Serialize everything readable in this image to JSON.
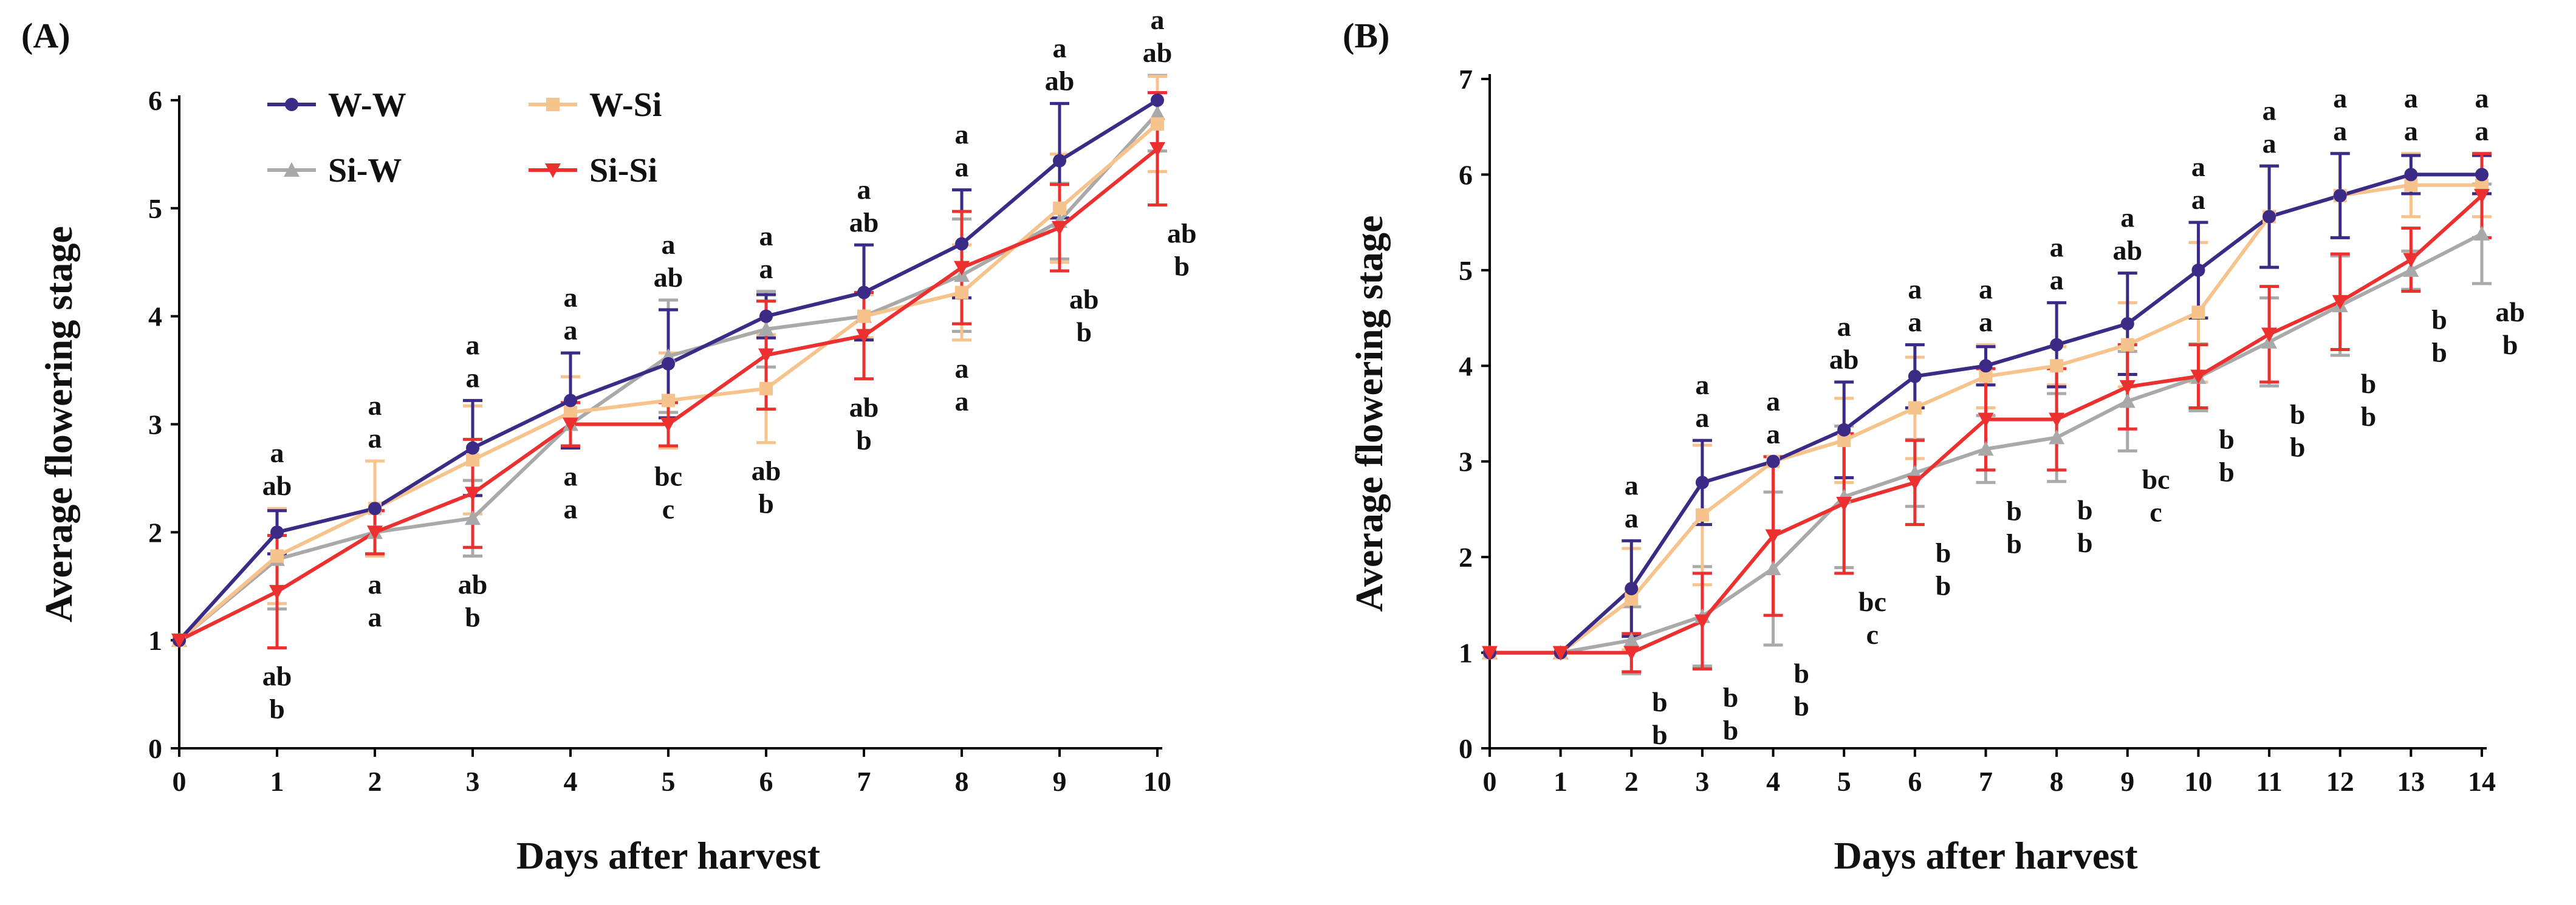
{
  "legend": {
    "entries": [
      {
        "key": "ww",
        "label": "W-W"
      },
      {
        "key": "wsi",
        "label": "W-Si"
      },
      {
        "key": "siw",
        "label": "Si-W"
      },
      {
        "key": "sisi",
        "label": "Si-Si"
      }
    ]
  },
  "colors": {
    "ww": "#3b2a86",
    "wsi": "#f6c38c",
    "siw": "#a9a9a9",
    "sisi": "#ec2f2f",
    "axis": "#000000",
    "text": "#111111"
  },
  "chart_data": [
    {
      "type": "line",
      "panel_label": "(A)",
      "xlabel": "Days after harvest",
      "ylabel": "Average flowering stage",
      "xlim": [
        0,
        10
      ],
      "ylim": [
        0,
        6
      ],
      "x_ticks": [
        0,
        1,
        2,
        3,
        4,
        5,
        6,
        7,
        8,
        9,
        10
      ],
      "y_ticks": [
        0,
        1,
        2,
        3,
        4,
        5,
        6
      ],
      "legend_position": "top-left",
      "x": [
        0,
        1,
        2,
        3,
        4,
        5,
        6,
        7,
        8,
        9,
        10
      ],
      "series": [
        {
          "key": "ww",
          "name": "W-W",
          "marker": "circle",
          "values": [
            1,
            2.0,
            2.22,
            2.78,
            3.22,
            3.56,
            4.0,
            4.22,
            4.67,
            5.44,
            6.0
          ],
          "errors": [
            0,
            0.2,
            0,
            0.44,
            0.44,
            0.5,
            0.2,
            0.44,
            0.5,
            0.53,
            0
          ]
        },
        {
          "key": "wsi",
          "name": "W-Si",
          "marker": "square",
          "values": [
            1,
            1.78,
            2.22,
            2.67,
            3.11,
            3.22,
            3.33,
            4.0,
            4.22,
            5.0,
            5.78
          ],
          "errors": [
            0,
            0.44,
            0.44,
            0.5,
            0.33,
            0.44,
            0.5,
            0.2,
            0.44,
            0.5,
            0.44
          ]
        },
        {
          "key": "siw",
          "name": "Si-W",
          "marker": "triangle-up",
          "values": [
            1,
            1.75,
            2.0,
            2.13,
            3.0,
            3.63,
            3.88,
            4.0,
            4.38,
            4.88,
            5.88
          ],
          "errors": [
            0,
            0.46,
            0.2,
            0.35,
            0.2,
            0.52,
            0.35,
            0.2,
            0.52,
            0.35,
            0.35
          ]
        },
        {
          "key": "sisi",
          "name": "Si-Si",
          "marker": "triangle-down",
          "values": [
            1,
            1.45,
            2.0,
            2.36,
            3.0,
            3.0,
            3.64,
            3.82,
            4.45,
            4.82,
            5.55
          ],
          "errors": [
            0,
            0.52,
            0.2,
            0.5,
            0.2,
            0.2,
            0.5,
            0.4,
            0.52,
            0.4,
            0.52
          ]
        }
      ],
      "annotations": [
        {
          "x": 1,
          "labels_above": [
            "a",
            "ab"
          ],
          "labels_below": [
            "ab",
            "b"
          ]
        },
        {
          "x": 2,
          "labels_above": [
            "a",
            "a"
          ],
          "labels_below": [
            "a",
            "a"
          ]
        },
        {
          "x": 3,
          "labels_above": [
            "a",
            "a"
          ],
          "labels_below": [
            "ab",
            "b"
          ]
        },
        {
          "x": 4,
          "labels_above": [
            "a",
            "a"
          ],
          "labels_below": [
            "a",
            "a"
          ]
        },
        {
          "x": 5,
          "labels_above": [
            "a",
            "ab"
          ],
          "labels_below": [
            "bc",
            "c"
          ]
        },
        {
          "x": 6,
          "labels_above": [
            "a",
            "a"
          ],
          "labels_below": [
            "ab",
            "b"
          ]
        },
        {
          "x": 7,
          "labels_above": [
            "a",
            "ab"
          ],
          "labels_below": [
            "ab",
            "b"
          ]
        },
        {
          "x": 8,
          "labels_above": [
            "a",
            "a"
          ],
          "labels_below": [
            "a",
            "a"
          ]
        },
        {
          "x": 9,
          "labels_above": [
            "a",
            "ab"
          ],
          "labels_below": []
        },
        {
          "x": 9.25,
          "labels_above": [],
          "labels_below": [
            "ab",
            "b"
          ]
        },
        {
          "x": 10,
          "labels_above": [
            "a",
            "ab"
          ],
          "labels_below": []
        },
        {
          "x": 10.25,
          "labels_above": [],
          "labels_below": [
            "ab",
            "b"
          ]
        }
      ]
    },
    {
      "type": "line",
      "panel_label": "(B)",
      "xlabel": "Days after harvest",
      "ylabel": "Average flowering stage",
      "xlim": [
        0,
        14
      ],
      "ylim": [
        0,
        7
      ],
      "x_ticks": [
        0,
        1,
        2,
        3,
        4,
        5,
        6,
        7,
        8,
        9,
        10,
        11,
        12,
        13,
        14
      ],
      "y_ticks": [
        0,
        1,
        2,
        3,
        4,
        5,
        6,
        7
      ],
      "legend_position": "none",
      "x": [
        0,
        1,
        2,
        3,
        4,
        5,
        6,
        7,
        8,
        9,
        10,
        11,
        12,
        13,
        14
      ],
      "series": [
        {
          "key": "ww",
          "name": "W-W",
          "marker": "circle",
          "values": [
            1,
            1,
            1.67,
            2.78,
            3.0,
            3.33,
            3.89,
            4.0,
            4.22,
            4.44,
            5.0,
            5.56,
            5.78,
            6.0,
            6.0
          ],
          "errors": [
            0,
            0,
            0.5,
            0.44,
            0,
            0.5,
            0.33,
            0.2,
            0.44,
            0.53,
            0.5,
            0.53,
            0.44,
            0.2,
            0.2
          ]
        },
        {
          "key": "wsi",
          "name": "W-Si",
          "marker": "square",
          "values": [
            1,
            1,
            1.56,
            2.44,
            3.0,
            3.22,
            3.56,
            3.89,
            4.0,
            4.22,
            4.56,
            5.56,
            5.78,
            5.89,
            5.89
          ],
          "errors": [
            0,
            0,
            0.53,
            0.73,
            0,
            0.44,
            0.53,
            0.33,
            0.2,
            0.44,
            0.73,
            0.53,
            0.44,
            0.33,
            0.33
          ]
        },
        {
          "key": "siw",
          "name": "Si-W",
          "marker": "triangle-up",
          "values": [
            1,
            1,
            1.13,
            1.38,
            1.88,
            2.63,
            2.88,
            3.13,
            3.25,
            3.63,
            3.88,
            4.25,
            4.63,
            5.0,
            5.38
          ],
          "errors": [
            0,
            0,
            0.35,
            0.52,
            0.8,
            0.74,
            0.35,
            0.35,
            0.46,
            0.52,
            0.35,
            0.46,
            0.52,
            0.2,
            0.52
          ]
        },
        {
          "key": "sisi",
          "name": "Si-Si",
          "marker": "triangle-down",
          "values": [
            1,
            1,
            1.0,
            1.33,
            2.22,
            2.56,
            2.78,
            3.44,
            3.44,
            3.78,
            3.89,
            4.33,
            4.67,
            5.11,
            5.78
          ],
          "errors": [
            0,
            0,
            0.2,
            0.5,
            0.83,
            0.73,
            0.44,
            0.53,
            0.53,
            0.44,
            0.33,
            0.5,
            0.5,
            0.33,
            0.44
          ]
        }
      ],
      "annotations": [
        {
          "x": 2,
          "labels_above": [
            "a",
            "a"
          ],
          "labels_below": []
        },
        {
          "x": 2.4,
          "labels_above": [],
          "labels_below": [
            "b",
            "b"
          ]
        },
        {
          "x": 3,
          "labels_above": [
            "a",
            "a"
          ],
          "labels_below": []
        },
        {
          "x": 3.4,
          "labels_above": [],
          "labels_below": [
            "b",
            "b"
          ]
        },
        {
          "x": 4,
          "labels_above": [
            "a",
            "a"
          ],
          "labels_below": []
        },
        {
          "x": 4.4,
          "labels_above": [],
          "labels_below": [
            "b",
            "b"
          ]
        },
        {
          "x": 5,
          "labels_above": [
            "a",
            "ab"
          ],
          "labels_below": []
        },
        {
          "x": 5.4,
          "labels_above": [],
          "labels_below": [
            "bc",
            "c"
          ]
        },
        {
          "x": 6,
          "labels_above": [
            "a",
            "a"
          ],
          "labels_below": []
        },
        {
          "x": 6.4,
          "labels_above": [],
          "labels_below": [
            "b",
            "b"
          ]
        },
        {
          "x": 7,
          "labels_above": [
            "a",
            "a"
          ],
          "labels_below": []
        },
        {
          "x": 7.4,
          "labels_above": [],
          "labels_below": [
            "b",
            "b"
          ]
        },
        {
          "x": 8,
          "labels_above": [
            "a",
            "a"
          ],
          "labels_below": []
        },
        {
          "x": 8.4,
          "labels_above": [],
          "labels_below": [
            "b",
            "b"
          ]
        },
        {
          "x": 9,
          "labels_above": [
            "a",
            "ab"
          ],
          "labels_below": []
        },
        {
          "x": 9.4,
          "labels_above": [],
          "labels_below": [
            "bc",
            "c"
          ]
        },
        {
          "x": 10,
          "labels_above": [
            "a",
            "a"
          ],
          "labels_below": []
        },
        {
          "x": 10.4,
          "labels_above": [],
          "labels_below": [
            "b",
            "b"
          ]
        },
        {
          "x": 11,
          "labels_above": [
            "a",
            "a"
          ],
          "labels_below": []
        },
        {
          "x": 11.4,
          "labels_above": [],
          "labels_below": [
            "b",
            "b"
          ]
        },
        {
          "x": 12,
          "labels_above": [
            "a",
            "a"
          ],
          "labels_below": []
        },
        {
          "x": 12.4,
          "labels_above": [],
          "labels_below": [
            "b",
            "b"
          ]
        },
        {
          "x": 13,
          "labels_above": [
            "a",
            "a"
          ],
          "labels_below": []
        },
        {
          "x": 13.4,
          "labels_above": [],
          "labels_below": [
            "b",
            "b"
          ]
        },
        {
          "x": 14,
          "labels_above": [
            "a",
            "a"
          ],
          "labels_below": []
        },
        {
          "x": 14.4,
          "labels_above": [],
          "labels_below": [
            "ab",
            "b"
          ]
        }
      ]
    }
  ]
}
